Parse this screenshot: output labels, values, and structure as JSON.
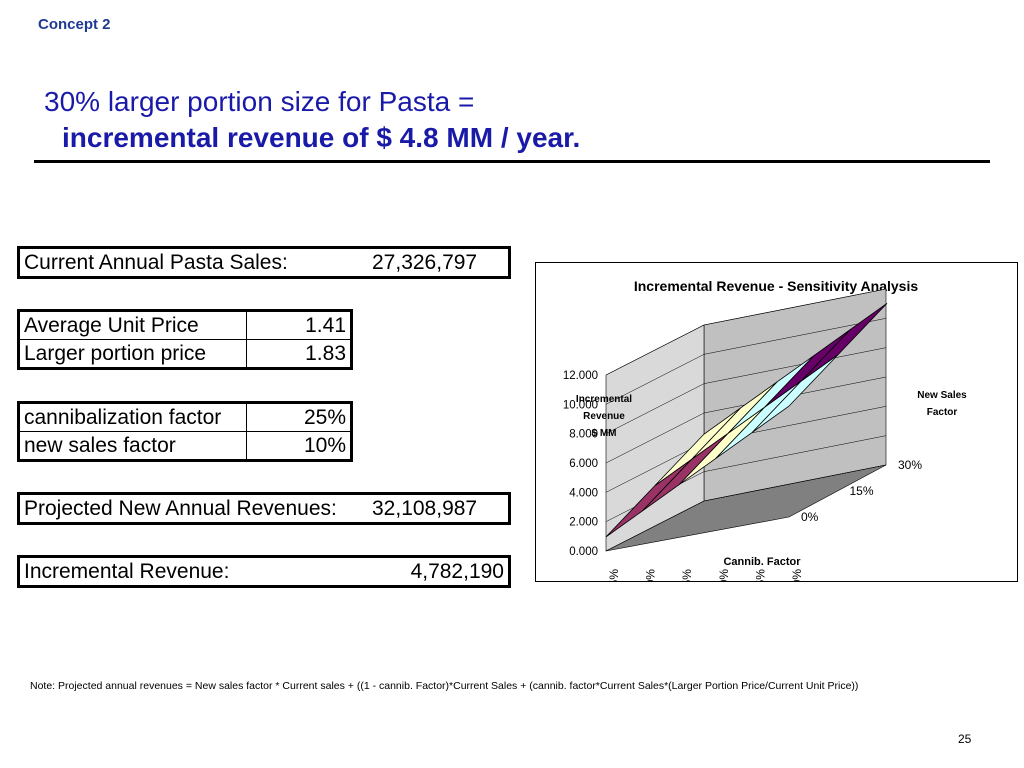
{
  "header": {
    "concept": "Concept 2",
    "title_line1": "30% larger portion size for Pasta =",
    "title_line2": "incremental revenue of $ 4.8 MM / year."
  },
  "tables": {
    "current_sales": {
      "label": "Current Annual Pasta Sales:",
      "value": "27,326,797"
    },
    "prices": [
      {
        "label": "Average Unit Price",
        "value": "1.41"
      },
      {
        "label": "Larger portion price",
        "value": "1.83"
      }
    ],
    "factors": [
      {
        "label": "cannibalization factor",
        "value": "25%"
      },
      {
        "label": "new sales factor",
        "value": "10%"
      }
    ],
    "projected": {
      "label": "Projected New Annual Revenues:",
      "value": "32,108,987"
    },
    "incremental": {
      "label": "Incremental Revenue:",
      "value": "4,782,190"
    }
  },
  "chart_data": {
    "type": "surface",
    "title": "Incremental Revenue - Sensitivity Analysis",
    "zlabel_lines": [
      "Incremental",
      "Revenue",
      "$ MM"
    ],
    "xlabel": "Cannib. Factor",
    "ylabel_lines": [
      "New Sales",
      "Factor"
    ],
    "x_categories": [
      "15%",
      "20%",
      "25%",
      "30%",
      "35%",
      "40%"
    ],
    "y_categories": [
      "0%",
      "15%",
      "30%"
    ],
    "z_ticks": [
      "0.000",
      "2.000",
      "4.000",
      "6.000",
      "8.000",
      "10.000",
      "12.000"
    ],
    "zlim": [
      0,
      12
    ],
    "band_colors": [
      "#9999ff",
      "#993366",
      "#ffffcc",
      "#ccffff",
      "#660066",
      "#ff8080"
    ]
  },
  "footer": {
    "note": "Note: Projected annual revenues = New sales factor * Current sales + ((1 - cannib. Factor)*Current Sales + (cannib. factor*Current Sales*(Larger Portion Price/Current Unit Price))",
    "page_number": "25"
  }
}
